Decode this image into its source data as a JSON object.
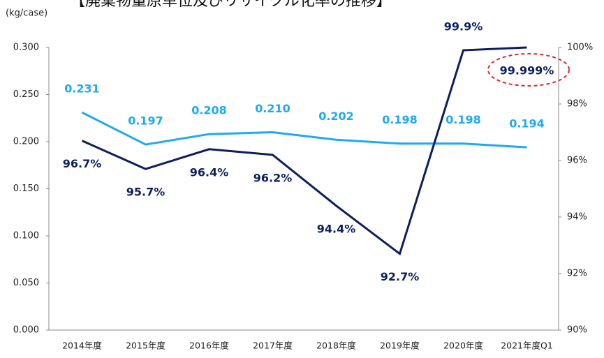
{
  "chart_data": {
    "type": "line",
    "title": "【廃棄物量原単位及びリサイクル化率の推移】",
    "y_label": "(kg/case)",
    "categories": [
      "2014年度",
      "2015年度",
      "2016年度",
      "2017年度",
      "2018年度",
      "2019年度",
      "2020年度",
      "2021年度Q1"
    ],
    "series": [
      {
        "name": "廃棄物量原単位",
        "color": "#1eaaf1",
        "values": [
          0.231,
          0.197,
          0.208,
          0.21,
          0.202,
          0.198,
          0.198,
          0.194
        ],
        "value_labels": [
          "0.231",
          "0.197",
          "0.208",
          "0.210",
          "0.202",
          "0.198",
          "0.198",
          "0.194"
        ]
      },
      {
        "name": "リサイクル化率",
        "color": "#0b1f5c",
        "axis": "y2",
        "values": [
          96.7,
          95.7,
          96.4,
          96.2,
          94.4,
          92.7,
          99.9,
          99.999
        ],
        "value_labels": [
          "96.7%",
          "95.7%",
          "96.4%",
          "96.2%",
          "94.4%",
          "92.7%",
          "99.9%",
          "99.999%"
        ]
      }
    ],
    "ylim": [
      0,
      0.3
    ],
    "yticks": [
      {
        "value": 0,
        "label": "0.000"
      },
      {
        "value": 0.05,
        "label": "0.050"
      },
      {
        "value": 0.1,
        "label": "0.100"
      },
      {
        "value": 0.15,
        "label": "0.150"
      },
      {
        "value": 0.2,
        "label": "0.200"
      },
      {
        "value": 0.25,
        "label": "0.250"
      },
      {
        "value": 0.3,
        "label": "0.300"
      }
    ],
    "y2lim": [
      90,
      100
    ],
    "y2ticks": [
      {
        "value": 90,
        "label": "90%"
      },
      {
        "value": 92,
        "label": "92%"
      },
      {
        "value": 94,
        "label": "94%"
      },
      {
        "value": 96,
        "label": "96%"
      },
      {
        "value": 98,
        "label": "98%"
      },
      {
        "value": 100,
        "label": "100%"
      }
    ],
    "grid": false
  }
}
